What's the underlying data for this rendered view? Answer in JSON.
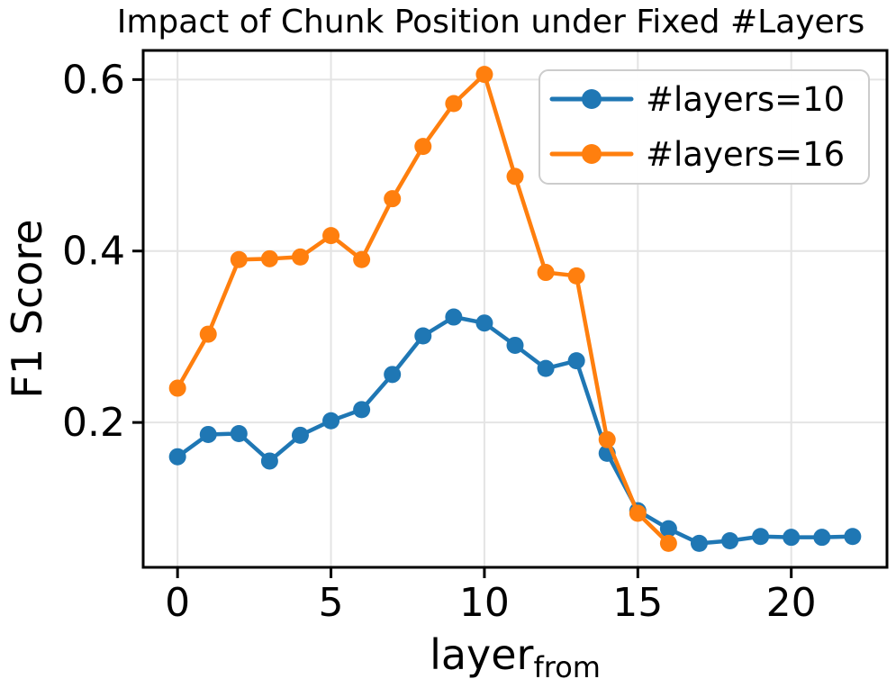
{
  "figure": {
    "title": "Impact of Chunk Position under Fixed #Layers",
    "ylabel": "F1 Score",
    "xlabel_main": "layer",
    "xlabel_sub": "from"
  },
  "chart_data": {
    "type": "line",
    "title": "Impact of Chunk Position under Fixed #Layers",
    "xlabel": "layer_from",
    "ylabel": "F1 Score",
    "grid": true,
    "grid_color": "#e4e4e4",
    "axis_color": "#000000",
    "xlim": [
      -1.12,
      23.12
    ],
    "ylim": [
      0.031,
      0.634
    ],
    "x_ticks": [
      0,
      5,
      10,
      15,
      20
    ],
    "y_ticks": [
      0.2,
      0.4,
      0.6
    ],
    "y_tick_labels": [
      "0.2",
      "0.4",
      "0.6"
    ],
    "legend_position": "upper right",
    "series": [
      {
        "name": "#layers=10",
        "color": "#1f77b4",
        "x": [
          0,
          1,
          2,
          3,
          4,
          5,
          6,
          7,
          8,
          9,
          10,
          11,
          12,
          13,
          14,
          15,
          16,
          17,
          18,
          19,
          20,
          21,
          22
        ],
        "values": [
          0.16,
          0.186,
          0.187,
          0.155,
          0.185,
          0.202,
          0.215,
          0.256,
          0.301,
          0.323,
          0.316,
          0.29,
          0.263,
          0.272,
          0.164,
          0.097,
          0.076,
          0.059,
          0.062,
          0.067,
          0.066,
          0.066,
          0.067
        ]
      },
      {
        "name": "#layers=16",
        "color": "#ff7f0e",
        "x": [
          0,
          1,
          2,
          3,
          4,
          5,
          6,
          7,
          8,
          9,
          10,
          11,
          12,
          13,
          14,
          15,
          16
        ],
        "values": [
          0.24,
          0.303,
          0.39,
          0.391,
          0.393,
          0.418,
          0.39,
          0.461,
          0.522,
          0.572,
          0.606,
          0.487,
          0.375,
          0.371,
          0.18,
          0.094,
          0.059
        ]
      }
    ]
  }
}
